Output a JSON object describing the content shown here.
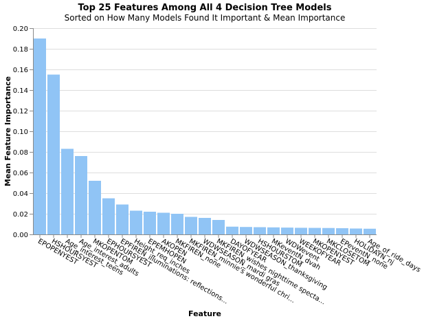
{
  "chart_data": {
    "type": "bar",
    "title": "Top 25 Features Among All 4 Decision Tree Models",
    "subtitle": "Sorted on How Many Models Found It Important & Mean Importance",
    "xlabel": "Feature",
    "ylabel": "Mean Feature Importance",
    "ylim": [
      0,
      0.2
    ],
    "yticks": [
      0.0,
      0.02,
      0.04,
      0.06,
      0.08,
      0.1,
      0.12,
      0.14,
      0.16,
      0.18,
      0.2
    ],
    "ytick_labels": [
      "0.00",
      "0.02",
      "0.04",
      "0.06",
      "0.08",
      "0.10",
      "0.12",
      "0.14",
      "0.16",
      "0.18",
      "0.20"
    ],
    "grid": true,
    "bar_color": "#90c4f5",
    "categories": [
      "EPOPENYEST",
      "HSHOURSYEST",
      "Age_interest_teens",
      "Age_interest_adults",
      "MKOPENTOM",
      "EPHOURSYEST",
      "EPFIREN_illuminations: reflections...",
      "Height_req_inches",
      "EPEMHOPEN",
      "AKOPEN",
      "MKFIREN_none",
      "MKFIREN_minnie's wonderful chri...",
      "WDWSEASON_mardi gras",
      "MKFIREN_wishes nighttime specta...",
      "DAYOFYEAR",
      "WDWSEASON_thanksgiving",
      "HSHOURSTOM",
      "MKeventN_dvah",
      "WDWevent",
      "WEEKOFYEAR",
      "MKOPENYEST",
      "MKCLOSETOM",
      "EPeventN_none",
      "HOLIDAYN_nj",
      "Age_of_ride_days"
    ],
    "values": [
      0.19,
      0.155,
      0.083,
      0.076,
      0.052,
      0.035,
      0.029,
      0.023,
      0.022,
      0.021,
      0.02,
      0.017,
      0.016,
      0.014,
      0.0075,
      0.0072,
      0.007,
      0.0068,
      0.0066,
      0.0064,
      0.0063,
      0.0062,
      0.006,
      0.0057,
      0.0055
    ]
  }
}
